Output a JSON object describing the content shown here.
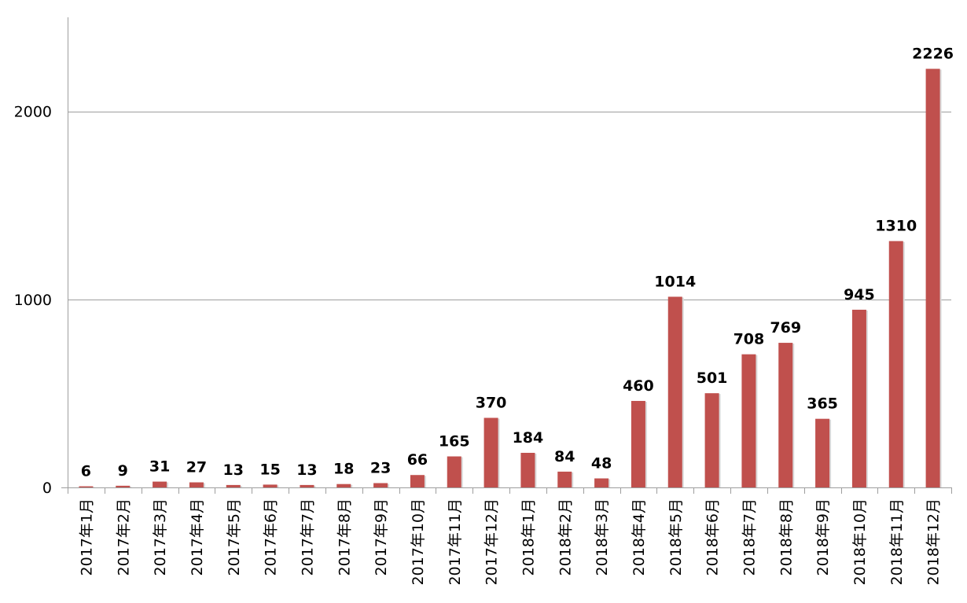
{
  "chart_data": {
    "type": "bar",
    "categories": [
      "2017年1月",
      "2017年2月",
      "2017年3月",
      "2017年4月",
      "2017年5月",
      "2017年6月",
      "2017年7月",
      "2017年8月",
      "2017年9月",
      "2017年10月",
      "2017年11月",
      "2017年12月",
      "2018年1月",
      "2018年2月",
      "2018年3月",
      "2018年4月",
      "2018年5月",
      "2018年6月",
      "2018年7月",
      "2018年8月",
      "2018年9月",
      "2018年10月",
      "2018年11月",
      "2018年12月"
    ],
    "series": [
      {
        "values": [
          6,
          9,
          31,
          27,
          13,
          15,
          13,
          18,
          23,
          66,
          165,
          370,
          184,
          84,
          48,
          460,
          1014,
          501,
          708,
          769,
          365,
          945,
          1310,
          2226
        ],
        "labels": [
          "6",
          "9",
          "31",
          "27",
          "13",
          "15",
          "13",
          "18",
          "23",
          "66",
          "165",
          "370",
          "184",
          "84",
          "48",
          "460",
          "1014",
          "501",
          "708",
          "769",
          "365",
          "945",
          "1310",
          "2226"
        ]
      }
    ],
    "title": "",
    "xlabel": "",
    "ylabel": "",
    "ylim": [
      0,
      2500
    ],
    "yticks": [
      0,
      1000,
      2000
    ],
    "ytick_labels": [
      "0",
      "1000",
      "2000"
    ],
    "grid": true,
    "legend": "none",
    "colors": {
      "bar": "#c0504d",
      "bar_shadow": "#d9d9d9",
      "gridline": "#9e9e9e"
    }
  }
}
